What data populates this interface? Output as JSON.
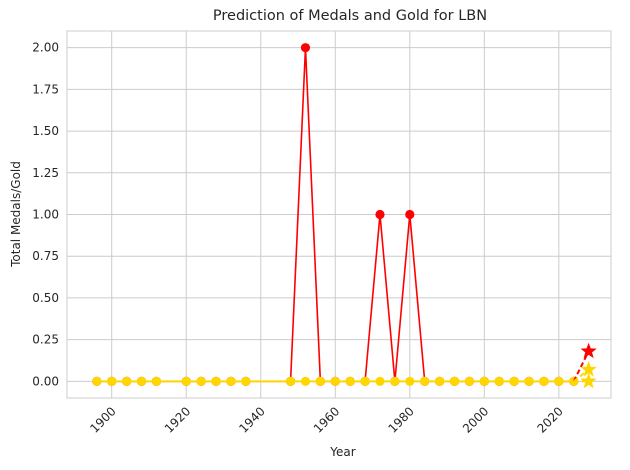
{
  "chart_data": {
    "type": "line",
    "title": "Prediction of Medals and Gold for LBN",
    "xlabel": "Year",
    "ylabel": "Total Medals/Gold",
    "xlim": [
      1888,
      2034
    ],
    "ylim": [
      -0.1,
      2.1
    ],
    "grid": true,
    "x_ticks": [
      1900,
      1920,
      1940,
      1960,
      1980,
      2000,
      2020
    ],
    "y_ticks": [
      0.0,
      0.25,
      0.5,
      0.75,
      1.0,
      1.25,
      1.5,
      1.75,
      2.0
    ],
    "colors": {
      "total": "#ff0000",
      "gold": "#ffd700"
    },
    "series": [
      {
        "role": "total",
        "x": [
          1896,
          1900,
          1904,
          1908,
          1912,
          1920,
          1924,
          1928,
          1932,
          1936,
          1948,
          1952,
          1956,
          1960,
          1964,
          1968,
          1972,
          1976,
          1980,
          1984,
          1988,
          1992,
          1996,
          2000,
          2004,
          2008,
          2012,
          2016,
          2020,
          2024
        ],
        "values": [
          0,
          0,
          0,
          0,
          0,
          0,
          0,
          0,
          0,
          0,
          0,
          2,
          0,
          0,
          0,
          0,
          1,
          0,
          1,
          0,
          0,
          0,
          0,
          0,
          0,
          0,
          0,
          0,
          0,
          0
        ]
      },
      {
        "role": "gold",
        "x": [
          1896,
          1900,
          1904,
          1908,
          1912,
          1920,
          1924,
          1928,
          1932,
          1936,
          1948,
          1952,
          1956,
          1960,
          1964,
          1968,
          1972,
          1976,
          1980,
          1984,
          1988,
          1992,
          1996,
          2000,
          2004,
          2008,
          2012,
          2016,
          2020,
          2024
        ],
        "values": [
          0,
          0,
          0,
          0,
          0,
          0,
          0,
          0,
          0,
          0,
          0,
          0,
          0,
          0,
          0,
          0,
          0,
          0,
          0,
          0,
          0,
          0,
          0,
          0,
          0,
          0,
          0,
          0,
          0,
          0
        ]
      }
    ],
    "predictions": [
      {
        "role": "total",
        "from": [
          2024,
          0
        ],
        "to": [
          2028,
          0.18
        ]
      },
      {
        "role": "gold-upper",
        "from": [
          2024,
          0
        ],
        "to": [
          2028,
          0.07
        ]
      },
      {
        "role": "gold",
        "from": [
          2024,
          0
        ],
        "to": [
          2028,
          0.0
        ]
      }
    ]
  }
}
